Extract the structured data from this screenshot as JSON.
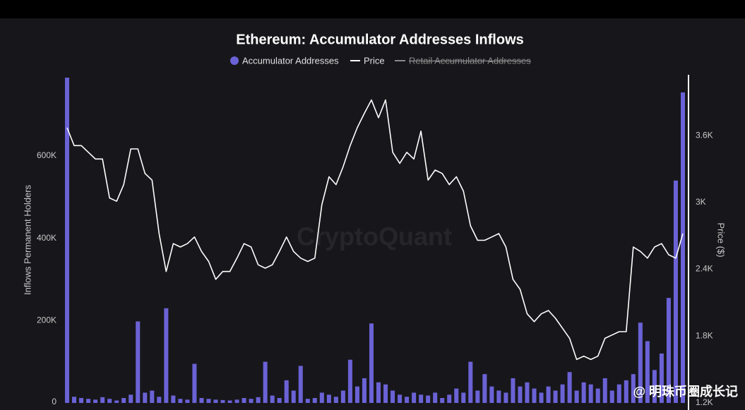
{
  "chart_data": {
    "type": "bar_line",
    "title": "Ethereum: Accumulator Addresses Inflows",
    "y_label": "Inflows Permanent Holders",
    "y2_label": "Price ($)",
    "watermark": "CryptoQuant",
    "credit": "@ 明珠币圈成长记",
    "ylim": [
      0,
      790000
    ],
    "yticks": [
      0,
      {
        "value": 200000,
        "label": "200K"
      },
      {
        "value": 400000,
        "label": "400K"
      },
      {
        "value": 600000,
        "label": "600K"
      }
    ],
    "y2lim": [
      1200,
      4120
    ],
    "y2ticks": [
      {
        "value": 1200,
        "label": "1.2K"
      },
      {
        "value": 1800,
        "label": "1.8K"
      },
      {
        "value": 2400,
        "label": "2.4K"
      },
      {
        "value": 3000,
        "label": "3K"
      },
      {
        "value": 3600,
        "label": "3.6K"
      }
    ],
    "hidden_legend": [
      {
        "name": "Retail Accumulator Addresses",
        "color": "#8a8a8a"
      }
    ],
    "series": [
      {
        "name": "Accumulator Addresses",
        "color": "#6b62d6",
        "type": "bar",
        "values": [
          790000,
          15000,
          12000,
          10000,
          8000,
          14000,
          10000,
          6000,
          12000,
          20000,
          198000,
          25000,
          30000,
          15000,
          230000,
          18000,
          10000,
          8000,
          95000,
          12000,
          10000,
          8000,
          7000,
          6000,
          8000,
          12000,
          10000,
          14000,
          100000,
          18000,
          12000,
          55000,
          30000,
          90000,
          10000,
          12000,
          25000,
          20000,
          15000,
          30000,
          105000,
          40000,
          60000,
          193000,
          50000,
          45000,
          30000,
          20000,
          15000,
          25000,
          20000,
          18000,
          25000,
          12000,
          20000,
          35000,
          25000,
          100000,
          30000,
          70000,
          40000,
          30000,
          25000,
          60000,
          40000,
          50000,
          35000,
          25000,
          40000,
          30000,
          45000,
          75000,
          30000,
          50000,
          45000,
          35000,
          60000,
          30000,
          45000,
          55000,
          70000,
          195000,
          150000,
          80000,
          120000,
          255000,
          540000,
          754000
        ]
      },
      {
        "name": "Price",
        "color": "#ffffff",
        "type": "line",
        "axis": "y2",
        "values": [
          3670,
          3510,
          3510,
          3450,
          3390,
          3390,
          3040,
          3010,
          3160,
          3480,
          3480,
          3260,
          3200,
          2720,
          2380,
          2630,
          2600,
          2630,
          2690,
          2560,
          2470,
          2310,
          2380,
          2380,
          2500,
          2630,
          2600,
          2440,
          2410,
          2440,
          2560,
          2690,
          2560,
          2500,
          2470,
          2500,
          2980,
          3230,
          3160,
          3320,
          3510,
          3670,
          3800,
          3920,
          3760,
          3920,
          3450,
          3350,
          3450,
          3390,
          3640,
          3200,
          3290,
          3260,
          3160,
          3230,
          3100,
          2790,
          2660,
          2660,
          2690,
          2720,
          2600,
          2310,
          2220,
          2000,
          1930,
          2000,
          2030,
          1960,
          1870,
          1780,
          1590,
          1620,
          1590,
          1620,
          1780,
          1810,
          1840,
          1840,
          2600,
          2560,
          2500,
          2600,
          2630,
          2530,
          2500,
          2720
        ]
      }
    ]
  }
}
